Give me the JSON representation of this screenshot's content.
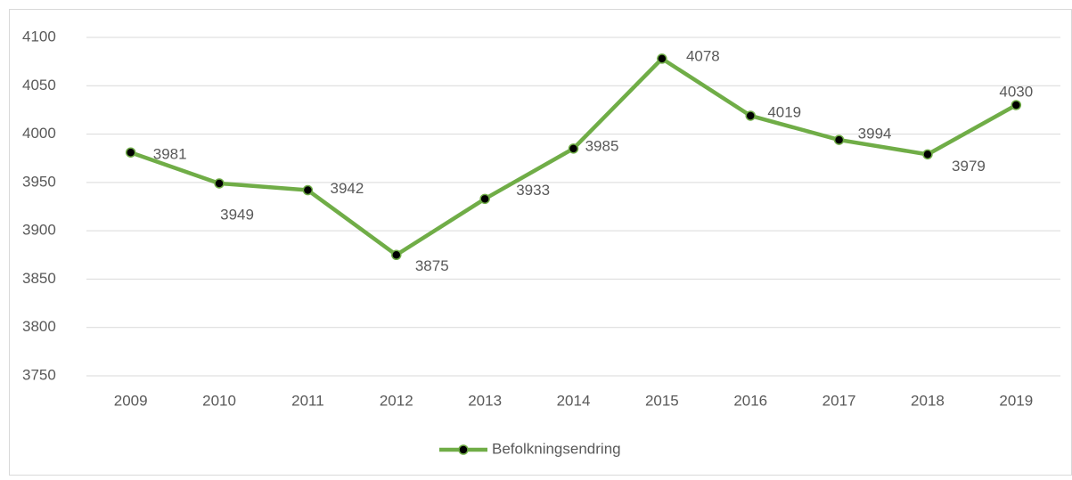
{
  "chart_data": {
    "type": "line",
    "categories": [
      "2009",
      "2010",
      "2011",
      "2012",
      "2013",
      "2014",
      "2015",
      "2016",
      "2017",
      "2018",
      "2019"
    ],
    "series": [
      {
        "name": "Befolkningsendring",
        "color": "#70ad47",
        "marker_color": "#000000",
        "values": [
          3981,
          3949,
          3942,
          3875,
          3933,
          3985,
          4078,
          4019,
          3994,
          3979,
          4030
        ]
      }
    ],
    "ylim": [
      3750,
      4100
    ],
    "yticks": [
      3750,
      3800,
      3850,
      3900,
      3950,
      4000,
      4050,
      4100
    ],
    "grid": true,
    "legend": "bottom",
    "data_labels": true
  }
}
